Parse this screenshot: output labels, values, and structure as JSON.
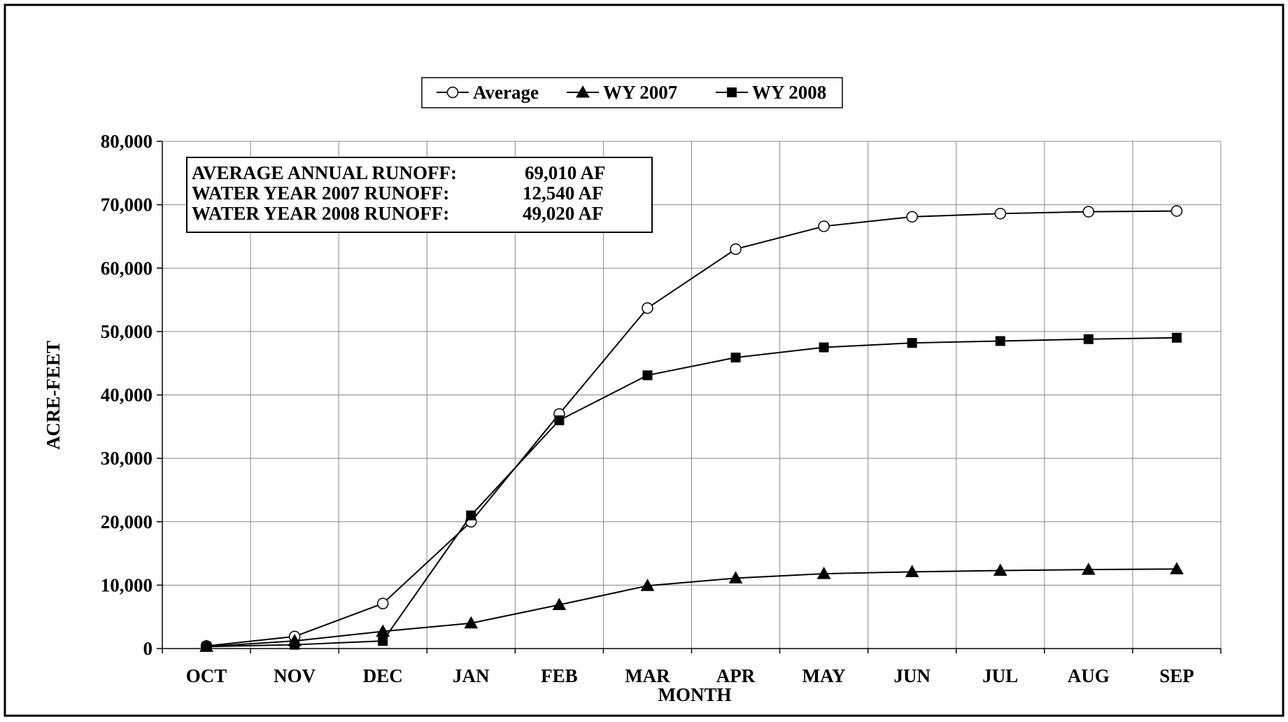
{
  "chart_data": {
    "type": "line",
    "xlabel": "MONTH",
    "ylabel": "ACRE-FEET",
    "ylim": [
      0,
      80000
    ],
    "yticks": [
      0,
      10000,
      20000,
      30000,
      40000,
      50000,
      60000,
      70000,
      80000
    ],
    "ytick_labels": [
      "0",
      "10,000",
      "20,000",
      "30,000",
      "40,000",
      "50,000",
      "60,000",
      "70,000",
      "80,000"
    ],
    "categories": [
      "OCT",
      "NOV",
      "DEC",
      "JAN",
      "FEB",
      "MAR",
      "APR",
      "MAY",
      "JUN",
      "JUL",
      "AUG",
      "SEP"
    ],
    "grid": true,
    "legend_position": "top-center",
    "series": [
      {
        "name": "Average",
        "marker": "open-circle",
        "color": "#000000",
        "values": [
          400,
          1900,
          7100,
          20000,
          37000,
          53700,
          63000,
          66600,
          68100,
          68600,
          68900,
          69010
        ]
      },
      {
        "name": "WY 2007",
        "marker": "filled-triangle",
        "color": "#000000",
        "values": [
          300,
          1200,
          2700,
          4000,
          6900,
          9900,
          11100,
          11800,
          12100,
          12300,
          12450,
          12540
        ]
      },
      {
        "name": "WY 2008",
        "marker": "filled-square",
        "color": "#000000",
        "values": [
          300,
          600,
          1200,
          21000,
          36000,
          43100,
          45900,
          47500,
          48200,
          48500,
          48800,
          49020
        ]
      }
    ],
    "annotation": {
      "lines": [
        {
          "label": "AVERAGE ANNUAL RUNOFF:",
          "value": "69,010 AF"
        },
        {
          "label": "WATER YEAR 2007 RUNOFF:",
          "value": "12,540 AF"
        },
        {
          "label": "WATER YEAR 2008 RUNOFF:",
          "value": "49,020 AF"
        }
      ]
    }
  }
}
